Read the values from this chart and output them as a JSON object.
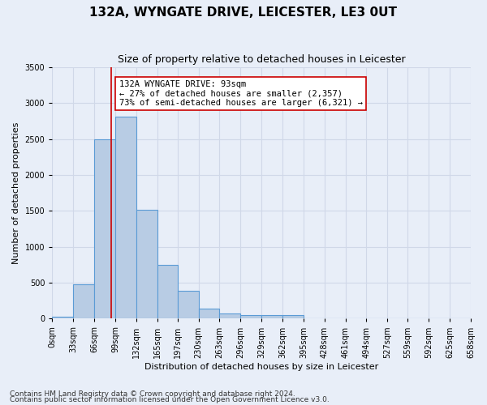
{
  "title": "132A, WYNGATE DRIVE, LEICESTER, LE3 0UT",
  "subtitle": "Size of property relative to detached houses in Leicester",
  "xlabel": "Distribution of detached houses by size in Leicester",
  "ylabel": "Number of detached properties",
  "footnote1": "Contains HM Land Registry data © Crown copyright and database right 2024.",
  "footnote2": "Contains public sector information licensed under the Open Government Licence v3.0.",
  "bin_edges": [
    0,
    33,
    66,
    99,
    132,
    165,
    197,
    230,
    263,
    296,
    329,
    362,
    395,
    428,
    461,
    494,
    527,
    559,
    592,
    625,
    658
  ],
  "bar_heights": [
    25,
    475,
    2500,
    2810,
    1520,
    750,
    385,
    140,
    70,
    50,
    50,
    50,
    0,
    0,
    0,
    0,
    0,
    0,
    0,
    0
  ],
  "bar_color": "#b8cce4",
  "bar_edge_color": "#5b9bd5",
  "bar_edge_width": 0.8,
  "grid_color": "#d0d8e8",
  "bg_color": "#e8eef8",
  "ylim": [
    0,
    3500
  ],
  "yticks": [
    0,
    500,
    1000,
    1500,
    2000,
    2500,
    3000,
    3500
  ],
  "property_sqm": 93,
  "red_line_color": "#cc0000",
  "annotation_line1": "132A WYNGATE DRIVE: 93sqm",
  "annotation_line2": "← 27% of detached houses are smaller (2,357)",
  "annotation_line3": "73% of semi-detached houses are larger (6,321) →",
  "annotation_box_color": "#ffffff",
  "annotation_box_edgecolor": "#cc0000",
  "tick_labels": [
    "0sqm",
    "33sqm",
    "66sqm",
    "99sqm",
    "132sqm",
    "165sqm",
    "197sqm",
    "230sqm",
    "263sqm",
    "296sqm",
    "329sqm",
    "362sqm",
    "395sqm",
    "428sqm",
    "461sqm",
    "494sqm",
    "527sqm",
    "559sqm",
    "592sqm",
    "625sqm",
    "658sqm"
  ],
  "title_fontsize": 11,
  "subtitle_fontsize": 9,
  "axis_label_fontsize": 8,
  "tick_fontsize": 7,
  "footnote_fontsize": 6.5,
  "annotation_fontsize": 7.5
}
